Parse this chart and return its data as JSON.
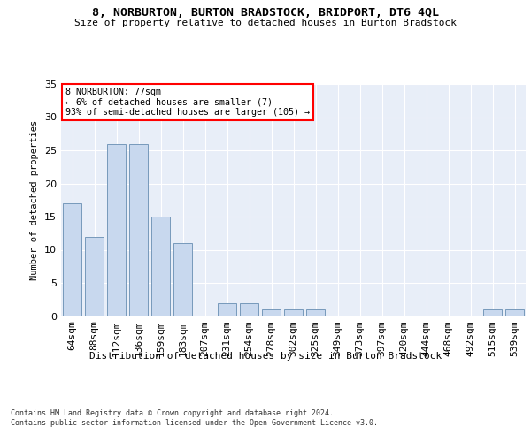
{
  "title": "8, NORBURTON, BURTON BRADSTOCK, BRIDPORT, DT6 4QL",
  "subtitle": "Size of property relative to detached houses in Burton Bradstock",
  "xlabel": "Distribution of detached houses by size in Burton Bradstock",
  "ylabel": "Number of detached properties",
  "bar_color": "#c8d8ee",
  "bar_edge_color": "#7799bb",
  "bg_color": "#e8eef8",
  "categories": [
    "64sqm",
    "88sqm",
    "112sqm",
    "136sqm",
    "159sqm",
    "183sqm",
    "207sqm",
    "231sqm",
    "254sqm",
    "278sqm",
    "302sqm",
    "325sqm",
    "349sqm",
    "373sqm",
    "397sqm",
    "420sqm",
    "444sqm",
    "468sqm",
    "492sqm",
    "515sqm",
    "539sqm"
  ],
  "values": [
    17,
    12,
    26,
    26,
    15,
    11,
    0,
    2,
    2,
    1,
    1,
    1,
    0,
    0,
    0,
    0,
    0,
    0,
    0,
    1,
    1
  ],
  "ylim": [
    0,
    35
  ],
  "yticks": [
    0,
    5,
    10,
    15,
    20,
    25,
    30,
    35
  ],
  "annotation_text": "8 NORBURTON: 77sqm\n← 6% of detached houses are smaller (7)\n93% of semi-detached houses are larger (105) →",
  "annotation_box_color": "white",
  "annotation_box_edge": "red",
  "footnote1": "Contains HM Land Registry data © Crown copyright and database right 2024.",
  "footnote2": "Contains public sector information licensed under the Open Government Licence v3.0.",
  "grid_color": "#ffffff"
}
